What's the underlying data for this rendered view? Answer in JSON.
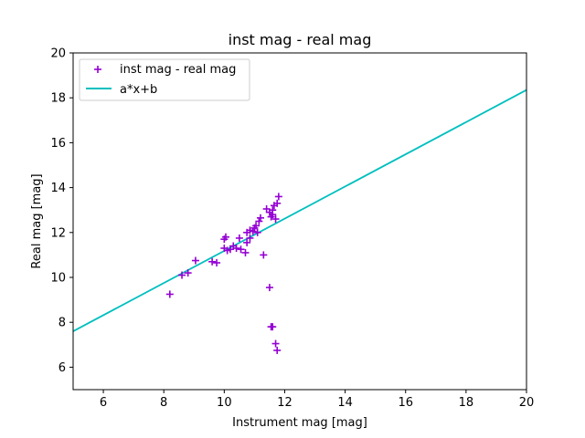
{
  "chart_data": {
    "type": "scatter",
    "title": "inst mag - real mag",
    "xlabel": "Instrument mag [mag]",
    "ylabel": "Real mag [mag]",
    "xlim": [
      5,
      20
    ],
    "ylim": [
      5,
      20
    ],
    "xticks": [
      6,
      8,
      10,
      12,
      14,
      16,
      18,
      20
    ],
    "yticks": [
      6,
      8,
      10,
      12,
      14,
      16,
      18,
      20
    ],
    "grid": false,
    "legend_position": "upper-left",
    "series": [
      {
        "name": "inst mag - real mag",
        "kind": "scatter",
        "marker": "plus",
        "color": "#9400d3",
        "points": [
          [
            8.2,
            9.25
          ],
          [
            8.6,
            10.1
          ],
          [
            8.8,
            10.2
          ],
          [
            9.05,
            10.75
          ],
          [
            9.6,
            10.7
          ],
          [
            9.75,
            10.65
          ],
          [
            10.0,
            11.7
          ],
          [
            10.05,
            11.8
          ],
          [
            10.0,
            11.3
          ],
          [
            10.1,
            11.2
          ],
          [
            10.2,
            11.25
          ],
          [
            10.3,
            11.4
          ],
          [
            10.4,
            11.3
          ],
          [
            10.5,
            11.75
          ],
          [
            10.55,
            11.25
          ],
          [
            10.7,
            11.1
          ],
          [
            10.75,
            11.55
          ],
          [
            10.75,
            12.0
          ],
          [
            10.85,
            11.75
          ],
          [
            10.85,
            12.1
          ],
          [
            10.95,
            12.05
          ],
          [
            11.0,
            12.2
          ],
          [
            11.05,
            12.3
          ],
          [
            11.1,
            12.0
          ],
          [
            11.15,
            12.5
          ],
          [
            11.2,
            12.65
          ],
          [
            11.3,
            11.0
          ],
          [
            11.4,
            13.05
          ],
          [
            11.5,
            12.9
          ],
          [
            11.55,
            12.7
          ],
          [
            11.6,
            12.8
          ],
          [
            11.6,
            13.0
          ],
          [
            11.65,
            13.2
          ],
          [
            11.7,
            12.6
          ],
          [
            11.75,
            13.3
          ],
          [
            11.8,
            13.6
          ],
          [
            11.5,
            9.55
          ],
          [
            11.55,
            7.8
          ],
          [
            11.6,
            7.8
          ],
          [
            11.7,
            7.05
          ],
          [
            11.75,
            6.75
          ]
        ]
      },
      {
        "name": "a*x+b",
        "kind": "line",
        "color": "#00bfbf",
        "points": [
          [
            5,
            7.6
          ],
          [
            20,
            18.35
          ]
        ]
      }
    ]
  }
}
